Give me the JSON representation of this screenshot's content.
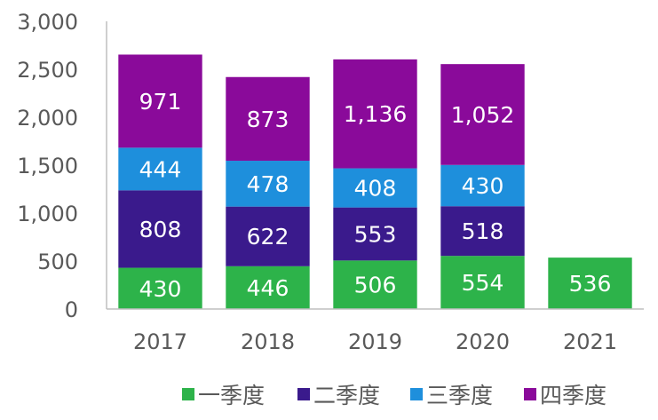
{
  "chart_data": {
    "type": "bar",
    "stacked": true,
    "categories": [
      "2017",
      "2018",
      "2019",
      "2020",
      "2021"
    ],
    "series": [
      {
        "name": "一季度",
        "color": "#2db34a",
        "values": [
          430,
          446,
          506,
          554,
          536
        ]
      },
      {
        "name": "二季度",
        "color": "#3a1a8c",
        "values": [
          808,
          622,
          553,
          518,
          null
        ]
      },
      {
        "name": "三季度",
        "color": "#1e8fdc",
        "values": [
          444,
          478,
          408,
          430,
          null
        ]
      },
      {
        "name": "四季度",
        "color": "#8a0a9a",
        "values": [
          971,
          873,
          1136,
          1052,
          null
        ]
      }
    ],
    "yticks": [
      "0",
      "500",
      "1,000",
      "1,500",
      "2,000",
      "2,500",
      "3,000"
    ],
    "ylim": [
      0,
      3000
    ],
    "grid": false,
    "legend": "bottom"
  }
}
